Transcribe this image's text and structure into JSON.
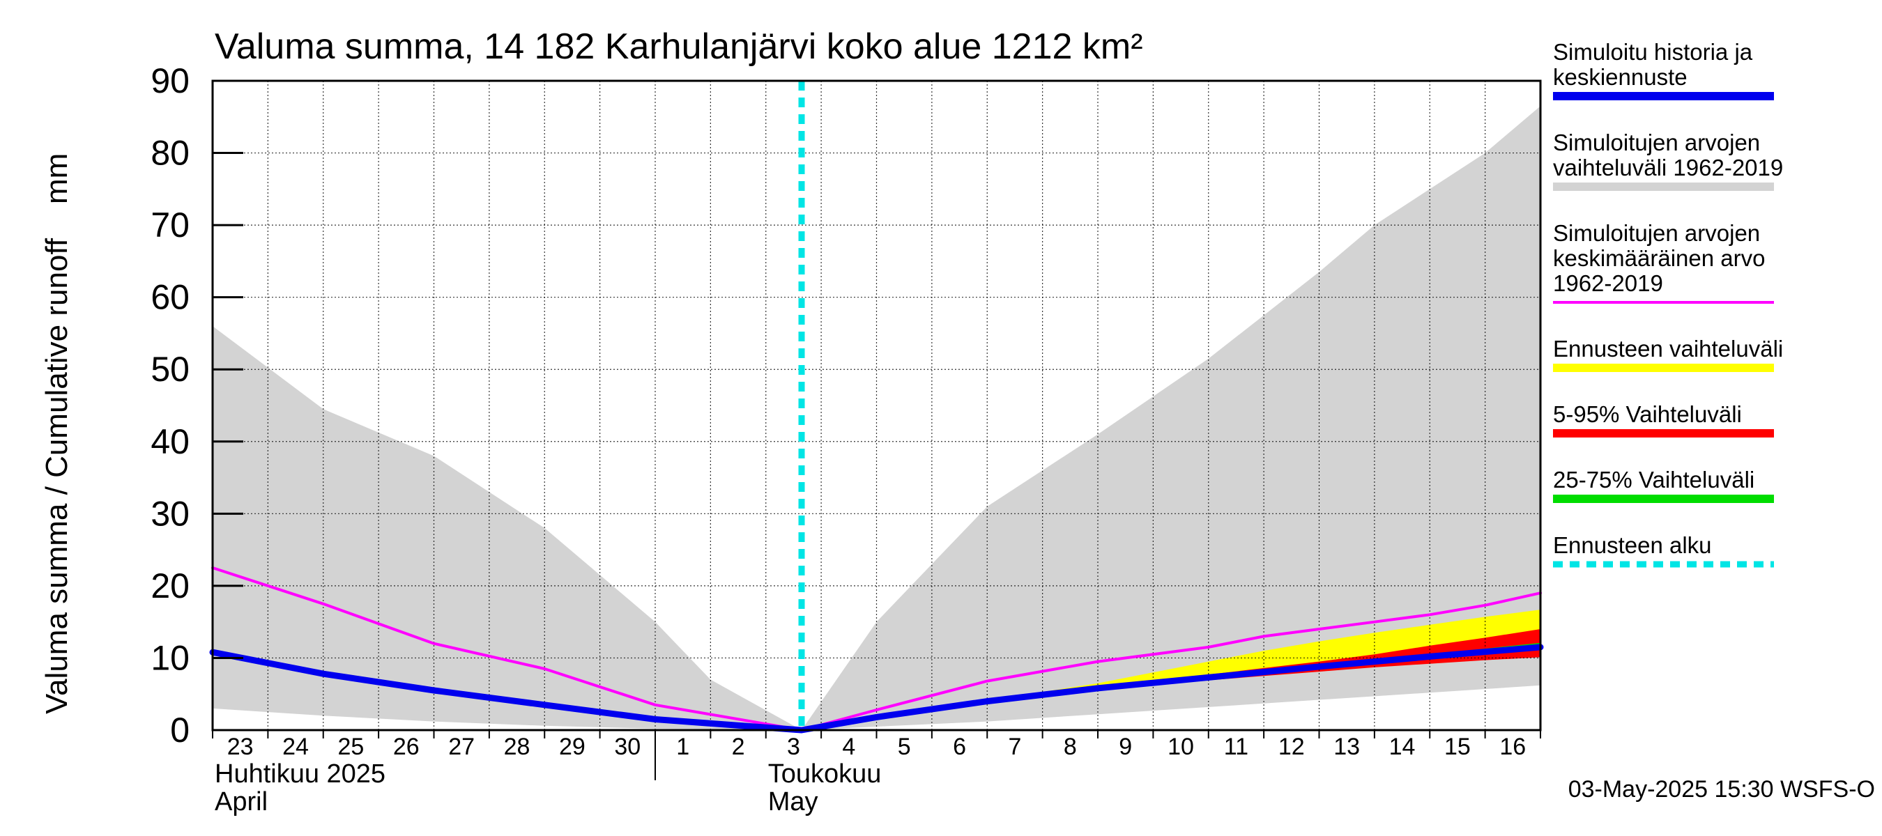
{
  "chart_data": {
    "type": "area",
    "title": "Valuma summa, 14 182 Karhulanjärvi koko alue 1212 km²",
    "ylabel": "Valuma summa / Cumulative runoff    mm",
    "ylim": [
      0,
      90
    ],
    "yticks": [
      0,
      10,
      20,
      30,
      40,
      50,
      60,
      70,
      80,
      90
    ],
    "x_start": "2025-04-23",
    "x_end": "2025-05-17",
    "day_labels": [
      "23",
      "24",
      "25",
      "26",
      "27",
      "28",
      "29",
      "30",
      "1",
      "2",
      "3",
      "4",
      "5",
      "6",
      "7",
      "8",
      "9",
      "10",
      "11",
      "12",
      "13",
      "14",
      "15",
      "16"
    ],
    "month_labels": [
      {
        "line1": "Huhtikuu  2025",
        "line2": "April",
        "start": "2025-04-23"
      },
      {
        "line1": "Toukokuu",
        "line2": "May",
        "start": "2025-05-03"
      }
    ],
    "month_divider": "2025-05-01",
    "forecast_start": "2025-05-03T15:30",
    "footer": "03-May-2025 15:30 WSFS-O",
    "grid": true,
    "legend_position": "right",
    "series": {
      "range_1962_2019": {
        "color": "#d3d3d3",
        "upper": [
          [
            "2025-04-23",
            56
          ],
          [
            "2025-04-25",
            44.5
          ],
          [
            "2025-04-27",
            38
          ],
          [
            "2025-04-29",
            28
          ],
          [
            "2025-05-01",
            15
          ],
          [
            "2025-05-02",
            7
          ],
          [
            "2025-05-03T15:30",
            0
          ],
          [
            "2025-05-05",
            15
          ],
          [
            "2025-05-06",
            23
          ],
          [
            "2025-05-07",
            31
          ],
          [
            "2025-05-09",
            41
          ],
          [
            "2025-05-11",
            51.5
          ],
          [
            "2025-05-13",
            63.5
          ],
          [
            "2025-05-14",
            70
          ],
          [
            "2025-05-16",
            80
          ],
          [
            "2025-05-17",
            86.5
          ]
        ],
        "lower": [
          [
            "2025-04-23",
            3
          ],
          [
            "2025-04-25",
            2
          ],
          [
            "2025-04-27",
            1.2
          ],
          [
            "2025-04-29",
            0.6
          ],
          [
            "2025-05-01",
            0.2
          ],
          [
            "2025-05-03T15:30",
            0
          ],
          [
            "2025-05-07",
            1.2
          ],
          [
            "2025-05-09",
            2.2
          ],
          [
            "2025-05-11",
            3.2
          ],
          [
            "2025-05-13",
            4.2
          ],
          [
            "2025-05-15",
            5.2
          ],
          [
            "2025-05-17",
            6.2
          ]
        ]
      },
      "mean_1962_2019": {
        "color": "#ff00ff",
        "points": [
          [
            "2025-04-23",
            22.5
          ],
          [
            "2025-04-25",
            17.5
          ],
          [
            "2025-04-27",
            12
          ],
          [
            "2025-04-29",
            8.5
          ],
          [
            "2025-05-01",
            3.5
          ],
          [
            "2025-05-03T15:30",
            0
          ],
          [
            "2025-05-05",
            2.8
          ],
          [
            "2025-05-07",
            6.8
          ],
          [
            "2025-05-09",
            9.5
          ],
          [
            "2025-05-11",
            11.5
          ],
          [
            "2025-05-12",
            13
          ],
          [
            "2025-05-13",
            14
          ],
          [
            "2025-05-14",
            15
          ],
          [
            "2025-05-15",
            16
          ],
          [
            "2025-05-16",
            17.3
          ],
          [
            "2025-05-17",
            19
          ]
        ]
      },
      "forecast_range": {
        "color": "#ffff00",
        "upper": [
          [
            "2025-05-07",
            4.3
          ],
          [
            "2025-05-08",
            5.3
          ],
          [
            "2025-05-09",
            6.5
          ],
          [
            "2025-05-10",
            8.0
          ],
          [
            "2025-05-11",
            9.5
          ],
          [
            "2025-05-12",
            11.0
          ],
          [
            "2025-05-13",
            12.3
          ],
          [
            "2025-05-14",
            13.5
          ],
          [
            "2025-05-15",
            14.6
          ],
          [
            "2025-05-16",
            15.7
          ],
          [
            "2025-05-17",
            16.7
          ]
        ],
        "lower": [
          [
            "2025-05-07",
            4.0
          ],
          [
            "2025-05-08",
            4.9
          ],
          [
            "2025-05-09",
            5.7
          ],
          [
            "2025-05-10",
            6.4
          ],
          [
            "2025-05-11",
            7.1
          ],
          [
            "2025-05-12",
            7.7
          ],
          [
            "2025-05-13",
            8.3
          ],
          [
            "2025-05-14",
            8.9
          ],
          [
            "2025-05-15",
            9.4
          ],
          [
            "2025-05-16",
            9.9
          ],
          [
            "2025-05-17",
            10.3
          ]
        ]
      },
      "p5_95": {
        "color": "#ff0000",
        "upper": [
          [
            "2025-05-07",
            4.2
          ],
          [
            "2025-05-08",
            5.0
          ],
          [
            "2025-05-09",
            5.9
          ],
          [
            "2025-05-10",
            6.8
          ],
          [
            "2025-05-11",
            7.7
          ],
          [
            "2025-05-12",
            8.6
          ],
          [
            "2025-05-13",
            9.5
          ],
          [
            "2025-05-14",
            10.5
          ],
          [
            "2025-05-15",
            11.7
          ],
          [
            "2025-05-16",
            12.8
          ],
          [
            "2025-05-17",
            14.0
          ]
        ],
        "lower": [
          [
            "2025-05-07",
            4.0
          ],
          [
            "2025-05-08",
            4.8
          ],
          [
            "2025-05-09",
            5.6
          ],
          [
            "2025-05-10",
            6.3
          ],
          [
            "2025-05-11",
            6.9
          ],
          [
            "2025-05-12",
            7.5
          ],
          [
            "2025-05-13",
            8.1
          ],
          [
            "2025-05-14",
            8.7
          ],
          [
            "2025-05-15",
            9.2
          ],
          [
            "2025-05-16",
            9.7
          ],
          [
            "2025-05-17",
            10.1
          ]
        ]
      },
      "p25_75": {
        "color": "#00dd00",
        "upper": [
          [
            "2025-05-07",
            4.1
          ],
          [
            "2025-05-08",
            4.9
          ],
          [
            "2025-05-09",
            5.8
          ],
          [
            "2025-05-10",
            6.6
          ],
          [
            "2025-05-11",
            7.4
          ],
          [
            "2025-05-12",
            8.1
          ],
          [
            "2025-05-13",
            8.9
          ],
          [
            "2025-05-14",
            9.7
          ],
          [
            "2025-05-15",
            10.5
          ],
          [
            "2025-05-16",
            11.3
          ],
          [
            "2025-05-17",
            12.1
          ]
        ],
        "lower": [
          [
            "2025-05-07",
            4.0
          ],
          [
            "2025-05-08",
            4.8
          ],
          [
            "2025-05-09",
            5.6
          ],
          [
            "2025-05-10",
            6.4
          ],
          [
            "2025-05-11",
            7.1
          ],
          [
            "2025-05-12",
            7.8
          ],
          [
            "2025-05-13",
            8.5
          ],
          [
            "2025-05-14",
            9.2
          ],
          [
            "2025-05-15",
            9.9
          ],
          [
            "2025-05-16",
            10.5
          ],
          [
            "2025-05-17",
            11.1
          ]
        ]
      },
      "history_median": {
        "color": "#0000ee",
        "points": [
          [
            "2025-04-23",
            10.8
          ],
          [
            "2025-04-25",
            7.8
          ],
          [
            "2025-04-27",
            5.5
          ],
          [
            "2025-04-29",
            3.5
          ],
          [
            "2025-05-01",
            1.5
          ],
          [
            "2025-05-03T15:30",
            0
          ],
          [
            "2025-05-05",
            1.8
          ],
          [
            "2025-05-07",
            4
          ],
          [
            "2025-05-09",
            5.8
          ],
          [
            "2025-05-11",
            7.3
          ],
          [
            "2025-05-13",
            8.8
          ],
          [
            "2025-05-15",
            10.2
          ],
          [
            "2025-05-17",
            11.5
          ]
        ]
      }
    },
    "legend": [
      {
        "key": "history_median",
        "lines": [
          "Simuloitu historia ja",
          "keskiennuste"
        ],
        "color": "#0000ee",
        "style": "solid"
      },
      {
        "key": "range_1962_2019",
        "lines": [
          "Simuloitujen arvojen",
          "vaihteluväli 1962-2019"
        ],
        "color": "#d3d3d3",
        "style": "solid"
      },
      {
        "key": "mean_1962_2019",
        "lines": [
          "Simuloitujen arvojen",
          "keskimääräinen arvo",
          "   1962-2019"
        ],
        "color": "#ff00ff",
        "style": "thin"
      },
      {
        "key": "forecast_range",
        "lines": [
          "Ennusteen vaihteluväli"
        ],
        "color": "#ffff00",
        "style": "solid"
      },
      {
        "key": "p5_95",
        "lines": [
          "5-95% Vaihteluväli"
        ],
        "color": "#ff0000",
        "style": "solid"
      },
      {
        "key": "p25_75",
        "lines": [
          "25-75% Vaihteluväli"
        ],
        "color": "#00dd00",
        "style": "solid"
      },
      {
        "key": "forecast_start",
        "lines": [
          "Ennusteen alku"
        ],
        "color": "#00e5e5",
        "style": "dashed"
      }
    ]
  }
}
